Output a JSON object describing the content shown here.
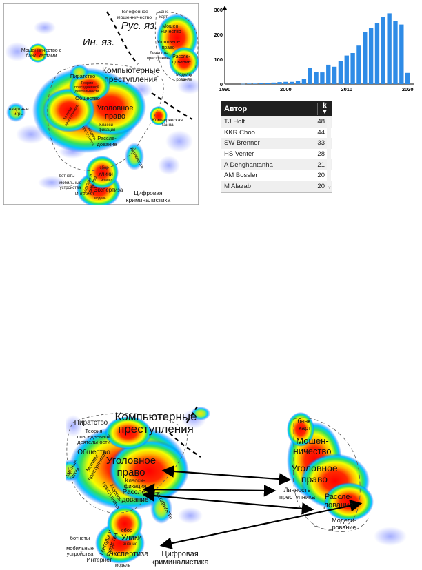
{
  "map_top": {
    "labels": {
      "telephone_fraud": [
        "Телефонное",
        "мошенничество"
      ],
      "bank_cards": [
        "Банк.",
        "карт"
      ],
      "fraud": [
        "Мошен-",
        "ничество"
      ],
      "criminal_law_ru": [
        "Уголовное",
        "право"
      ],
      "offender_personality": [
        "Личность",
        "преступника"
      ],
      "investigation_ru": [
        "Рассле-",
        "дование"
      ],
      "modeling": [
        "Модели-",
        "рование"
      ],
      "rus_lang": "Рус. яз.",
      "foreign_lang": "Ин. яз.",
      "bank_card_fraud": [
        "Мошенничество с",
        "банк. картами"
      ],
      "piracy": "Пиратство",
      "computer_crimes": [
        "Компьютерные",
        "преступления"
      ],
      "everyday_theory": [
        "Теория",
        "повседневной",
        "деятельности"
      ],
      "society": "Общество",
      "criminal_law": [
        "Уголовное",
        "право"
      ],
      "gambling": [
        "Азартные",
        "игры"
      ],
      "cyber_offenders": [
        "Мотивы",
        "преступников"
      ],
      "classification": [
        "Класси-",
        "фикация"
      ],
      "investigation": [
        "Рассле-",
        "дование"
      ],
      "trade_secret": [
        "Коммерческая",
        "тайна"
      ],
      "victims": [
        "Модель",
        "преступника"
      ],
      "botnets": "ботнеты",
      "mobile_devices": [
        "мобильные",
        "устройства"
      ],
      "methods": [
        "Методы и",
        "средства"
      ],
      "collection": "сбор",
      "evidence": "Улики",
      "knowledge": "знания",
      "expertise": "Экспертиза",
      "internet": "Интернет",
      "model": "модель",
      "digital_forensics": [
        "Цифровая",
        "криминалистика"
      ],
      "activity": "Активность"
    }
  },
  "chart_data": {
    "type": "bar",
    "title": "",
    "xlabel": "",
    "ylabel": "",
    "x": [
      1993,
      1994,
      1995,
      1996,
      1997,
      1998,
      1999,
      2000,
      2001,
      2002,
      2003,
      2004,
      2005,
      2006,
      2007,
      2008,
      2009,
      2010,
      2011,
      2012,
      2013,
      2014,
      2015,
      2016,
      2017,
      2018,
      2019,
      2020
    ],
    "values": [
      1,
      2,
      2,
      3,
      4,
      6,
      8,
      9,
      9,
      13,
      22,
      65,
      50,
      47,
      78,
      70,
      93,
      115,
      125,
      155,
      210,
      225,
      245,
      270,
      285,
      255,
      240,
      45
    ],
    "xticks": [
      "1990",
      "2000",
      "2010",
      "2020"
    ],
    "yticks": [
      "0",
      "100",
      "200",
      "300"
    ],
    "xlim": [
      1990,
      2021
    ],
    "ylim": [
      0,
      300
    ],
    "color": "#2e8be6",
    "grid": false
  },
  "author_table": {
    "header": {
      "author": "Автор",
      "k": "k"
    },
    "rows": [
      {
        "author": "TJ Holt",
        "k": "48"
      },
      {
        "author": "KKR Choo",
        "k": "44"
      },
      {
        "author": "SW Brenner",
        "k": "33"
      },
      {
        "author": "HS Venter",
        "k": "28"
      },
      {
        "author": "A Dehghantanha",
        "k": "21"
      },
      {
        "author": "AM Bossler",
        "k": "20"
      },
      {
        "author": "M Alazab",
        "k": "20"
      }
    ]
  },
  "map_bottom": {
    "labels": {
      "piracy": "Пиратство",
      "computer_crimes": [
        "Компьютерные",
        "преступления"
      ],
      "everyday_theory": [
        "Теория",
        "повседневной",
        "деятельности"
      ],
      "society": "Общество",
      "criminal_law": [
        "Уголовное",
        "право"
      ],
      "gambling": [
        "Азартные",
        "игры"
      ],
      "offenders": [
        "Мотивы",
        "преступников"
      ],
      "classification": [
        "Класси-",
        "фикация"
      ],
      "investigation": [
        "Рассле-",
        "дование"
      ],
      "model_offender": [
        "Модель",
        "преступника"
      ],
      "activity": "Активность",
      "botnets": "ботнеты",
      "mobile_devices": [
        "мобильные",
        "устройства"
      ],
      "methods": [
        "Методы и",
        "средства"
      ],
      "collection": "сбор",
      "evidence": "Улики",
      "knowledge": "знания",
      "expertise": "Экспертиза",
      "internet": "Интернет",
      "model": "модель",
      "digital_forensics": [
        "Цифровая",
        "криминалистика"
      ],
      "bank_cards": [
        "банк.",
        "карт"
      ],
      "fraud": [
        "Мошен-",
        "ничество"
      ],
      "criminal_law_ru": [
        "Уголовное",
        "право"
      ],
      "offender_personality": [
        "Личность",
        "преступника"
      ],
      "investigation_ru": [
        "Рассле-",
        "дование"
      ],
      "modeling": [
        "Модели-",
        "рование"
      ]
    }
  }
}
